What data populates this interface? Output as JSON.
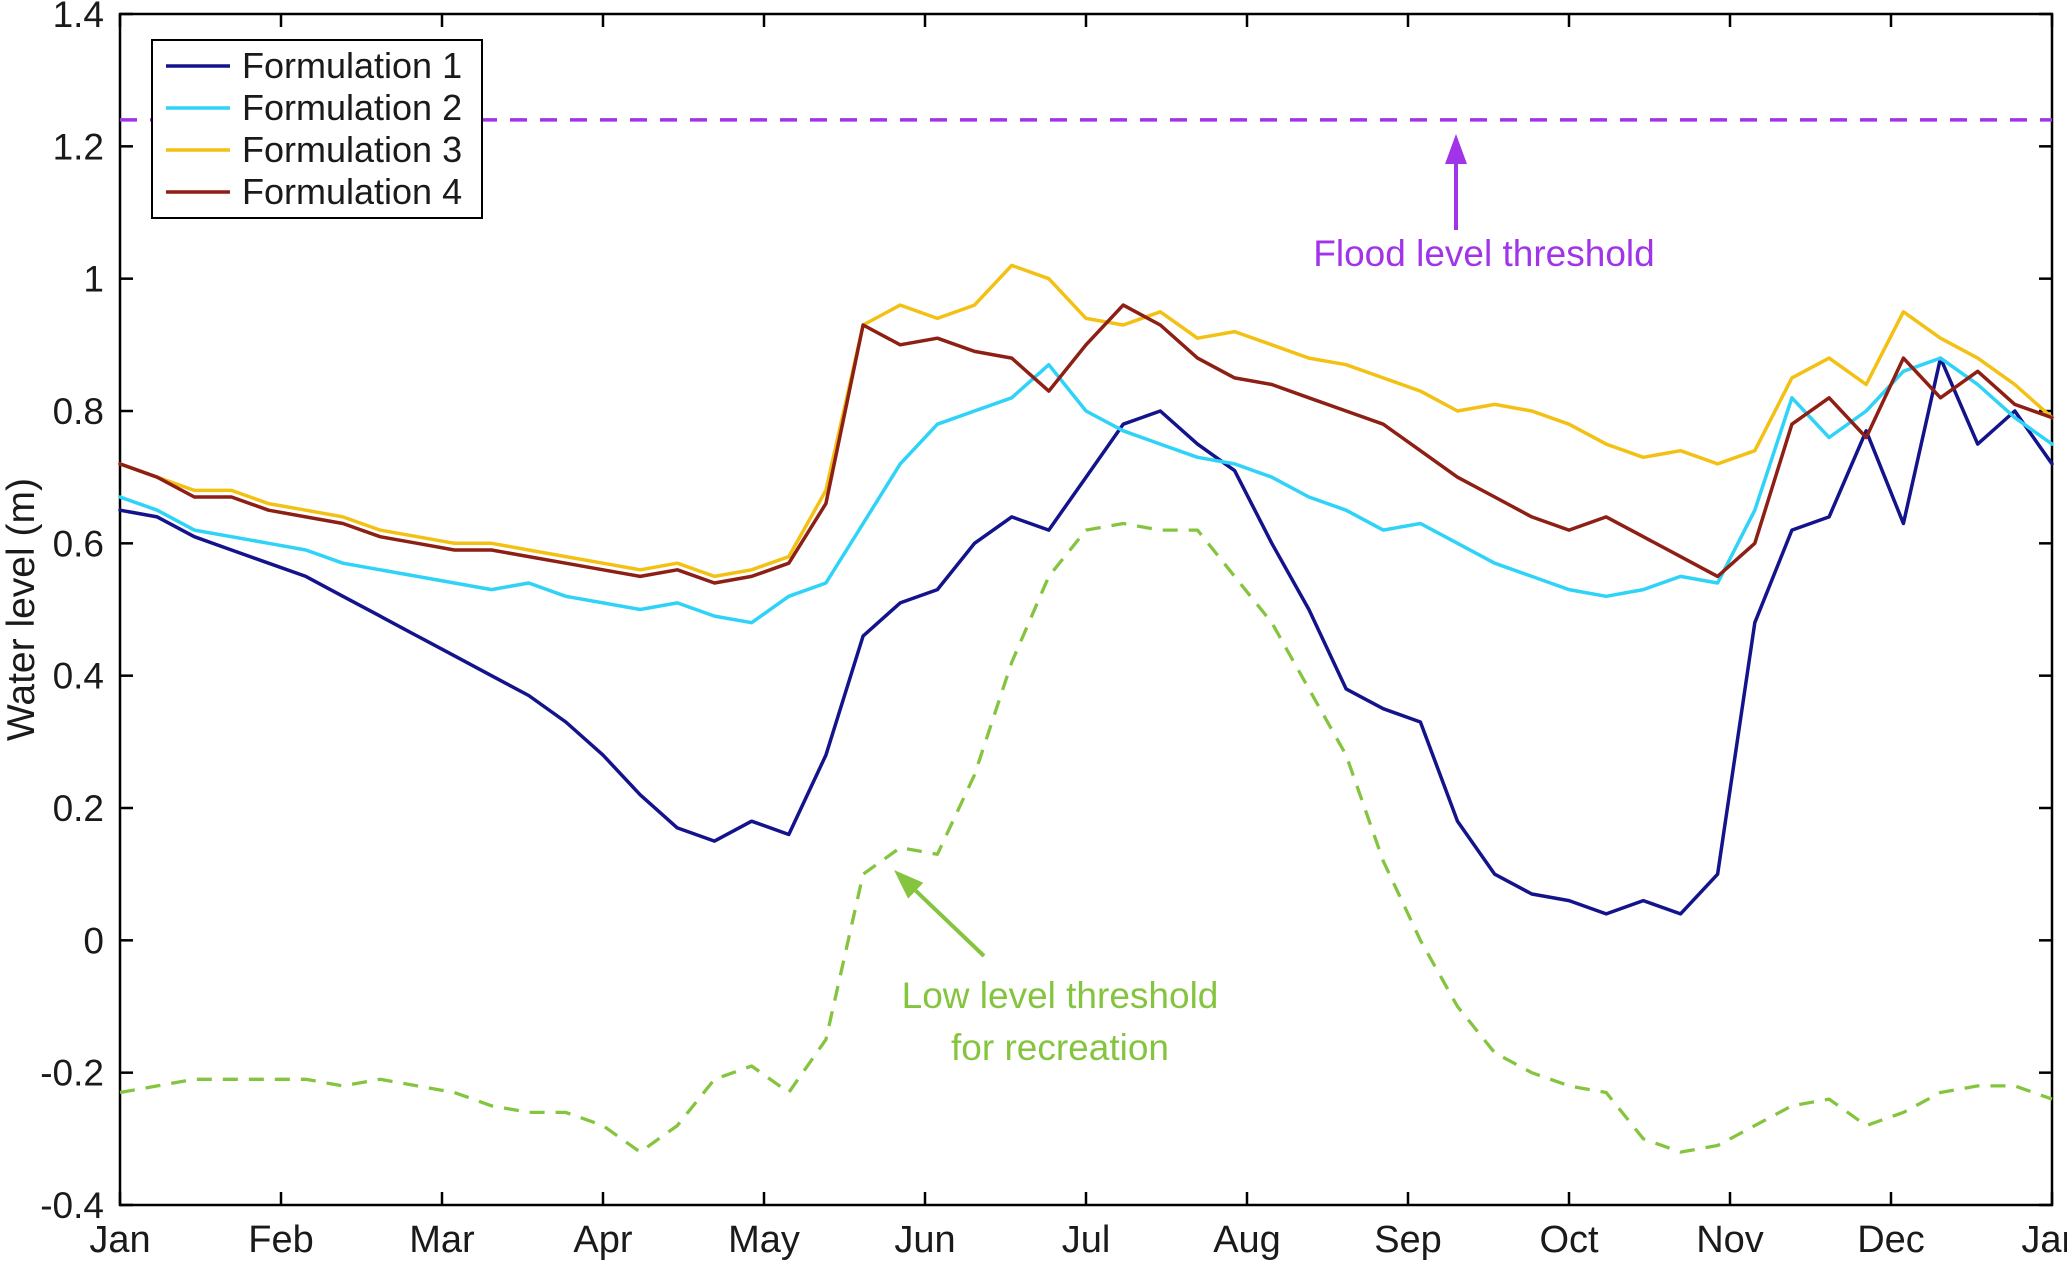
{
  "chart_data": {
    "type": "line",
    "title": "",
    "xlabel": "",
    "ylabel": "Water level (m)",
    "ylim": [
      -0.4,
      1.4
    ],
    "yticks": [
      -0.4,
      -0.2,
      0,
      0.2,
      0.4,
      0.6,
      0.8,
      1,
      1.2,
      1.4
    ],
    "ytick_labels": [
      "-0.4",
      "-0.2",
      "0",
      "0.2",
      "0.4",
      "0.6",
      "0.8",
      "1",
      "1.2",
      "1.4"
    ],
    "x_months": [
      "Jan",
      "Feb",
      "Mar",
      "Apr",
      "May",
      "Jun",
      "Jul",
      "Aug",
      "Sep",
      "Oct",
      "Nov",
      "Dec",
      "Jan"
    ],
    "x_range_days": [
      0,
      365
    ],
    "points_per_series": 53,
    "sampling": "weekly (day = index * 365/52)",
    "grid": false,
    "axis_color": "#000000",
    "text_color": "#1a1a1a",
    "series": [
      {
        "name": "Formulation 1",
        "color": "#13138c",
        "line_style": "solid",
        "values": [
          0.65,
          0.64,
          0.61,
          0.59,
          0.57,
          0.55,
          0.52,
          0.49,
          0.46,
          0.43,
          0.4,
          0.37,
          0.33,
          0.28,
          0.22,
          0.17,
          0.15,
          0.18,
          0.16,
          0.28,
          0.46,
          0.51,
          0.53,
          0.6,
          0.64,
          0.62,
          0.7,
          0.78,
          0.8,
          0.75,
          0.71,
          0.6,
          0.5,
          0.38,
          0.35,
          0.33,
          0.18,
          0.1,
          0.07,
          0.06,
          0.04,
          0.06,
          0.04,
          0.1,
          0.48,
          0.62,
          0.64,
          0.77,
          0.63,
          0.88,
          0.75,
          0.8,
          0.72
        ]
      },
      {
        "name": "Formulation 2",
        "color": "#2fd3f7",
        "line_style": "solid",
        "values": [
          0.67,
          0.65,
          0.62,
          0.61,
          0.6,
          0.59,
          0.57,
          0.56,
          0.55,
          0.54,
          0.53,
          0.54,
          0.52,
          0.51,
          0.5,
          0.51,
          0.49,
          0.48,
          0.52,
          0.54,
          0.63,
          0.72,
          0.78,
          0.8,
          0.82,
          0.87,
          0.8,
          0.77,
          0.75,
          0.73,
          0.72,
          0.7,
          0.67,
          0.65,
          0.62,
          0.63,
          0.6,
          0.57,
          0.55,
          0.53,
          0.52,
          0.53,
          0.55,
          0.54,
          0.65,
          0.82,
          0.76,
          0.8,
          0.86,
          0.88,
          0.84,
          0.79,
          0.75
        ]
      },
      {
        "name": "Formulation 3",
        "color": "#f2c114",
        "line_style": "solid",
        "values": [
          0.72,
          0.7,
          0.68,
          0.68,
          0.66,
          0.65,
          0.64,
          0.62,
          0.61,
          0.6,
          0.6,
          0.59,
          0.58,
          0.57,
          0.56,
          0.57,
          0.55,
          0.56,
          0.58,
          0.68,
          0.93,
          0.96,
          0.94,
          0.96,
          1.02,
          1.0,
          0.94,
          0.93,
          0.95,
          0.91,
          0.92,
          0.9,
          0.88,
          0.87,
          0.85,
          0.83,
          0.8,
          0.81,
          0.8,
          0.78,
          0.75,
          0.73,
          0.74,
          0.72,
          0.74,
          0.85,
          0.88,
          0.84,
          0.95,
          0.91,
          0.88,
          0.84,
          0.79
        ]
      },
      {
        "name": "Formulation 4",
        "color": "#8d1f14",
        "line_style": "solid",
        "values": [
          0.72,
          0.7,
          0.67,
          0.67,
          0.65,
          0.64,
          0.63,
          0.61,
          0.6,
          0.59,
          0.59,
          0.58,
          0.57,
          0.56,
          0.55,
          0.56,
          0.54,
          0.55,
          0.57,
          0.66,
          0.93,
          0.9,
          0.91,
          0.89,
          0.88,
          0.83,
          0.9,
          0.96,
          0.93,
          0.88,
          0.85,
          0.84,
          0.82,
          0.8,
          0.78,
          0.74,
          0.7,
          0.67,
          0.64,
          0.62,
          0.64,
          0.61,
          0.58,
          0.55,
          0.6,
          0.78,
          0.82,
          0.76,
          0.88,
          0.82,
          0.86,
          0.81,
          0.79
        ]
      }
    ],
    "low_threshold": {
      "label": "Low level threshold for recreation",
      "color": "#85c43e",
      "line_style": "dashed",
      "values": [
        -0.23,
        -0.22,
        -0.21,
        -0.21,
        -0.21,
        -0.21,
        -0.22,
        -0.21,
        -0.22,
        -0.23,
        -0.25,
        -0.26,
        -0.26,
        -0.28,
        -0.32,
        -0.28,
        -0.21,
        -0.19,
        -0.23,
        -0.15,
        0.1,
        0.14,
        0.13,
        0.25,
        0.42,
        0.55,
        0.62,
        0.63,
        0.62,
        0.62,
        0.55,
        0.48,
        0.38,
        0.28,
        0.12,
        0.0,
        -0.1,
        -0.17,
        -0.2,
        -0.22,
        -0.23,
        -0.3,
        -0.32,
        -0.31,
        -0.28,
        -0.25,
        -0.24,
        -0.28,
        -0.26,
        -0.23,
        -0.22,
        -0.22,
        -0.24
      ]
    },
    "flood_threshold": {
      "label": "Flood level threshold",
      "color": "#a133e8",
      "line_style": "dashed",
      "value": 1.24
    },
    "legend": {
      "position": "top-left",
      "entries": [
        "Formulation 1",
        "Formulation 2",
        "Formulation 3",
        "Formulation 4"
      ]
    },
    "annotations": {
      "flood": {
        "lines": [
          "Flood level threshold"
        ],
        "color": "#a133e8"
      },
      "low": {
        "lines": [
          "Low level threshold",
          "for recreation"
        ],
        "color": "#85c43e"
      }
    }
  }
}
